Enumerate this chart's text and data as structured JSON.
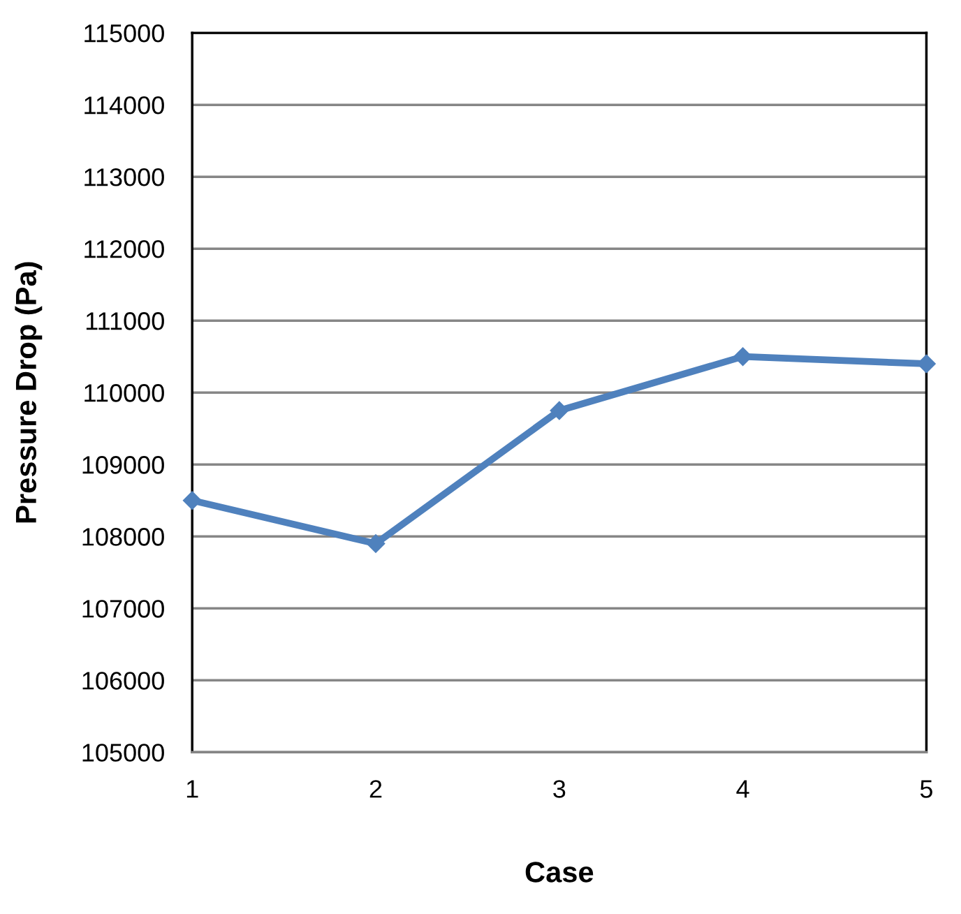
{
  "chart_data": {
    "type": "line",
    "xlabel": "Case",
    "ylabel": "Pressure Drop (Pa)",
    "x": [
      1,
      2,
      3,
      4,
      5
    ],
    "series": [
      {
        "color": "#4f81bd",
        "values": [
          108500,
          107900,
          109750,
          110500,
          110400
        ]
      }
    ],
    "xlim": [
      1,
      5
    ],
    "xticks": [
      1,
      2,
      3,
      4,
      5
    ],
    "ylim": [
      105000,
      115000
    ],
    "yticks": [
      105000,
      106000,
      107000,
      108000,
      109000,
      110000,
      111000,
      112000,
      113000,
      114000,
      115000
    ],
    "grid": "y",
    "marker": "diamond",
    "line_style": "solid"
  }
}
